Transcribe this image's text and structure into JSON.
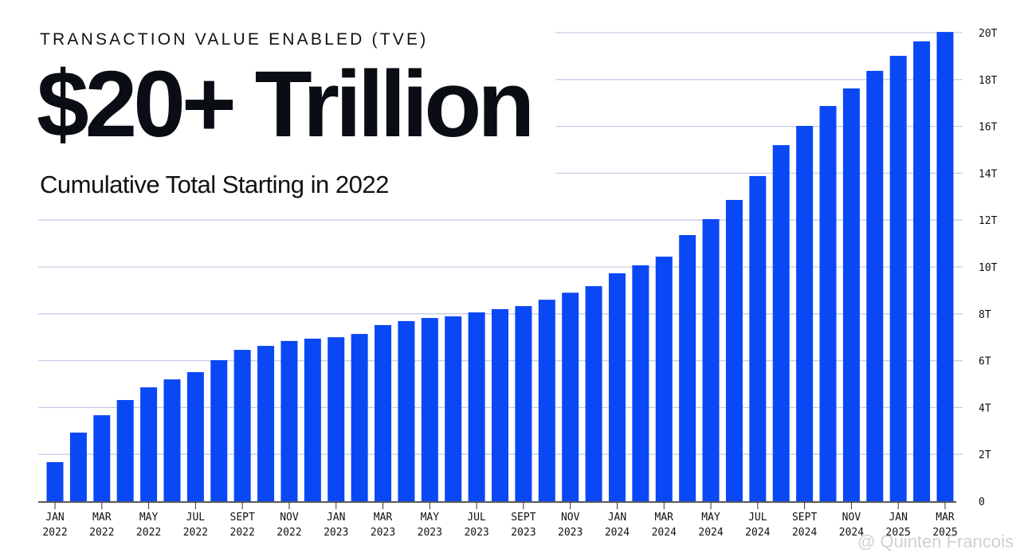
{
  "header": {
    "kicker": "TRANSACTION VALUE ENABLED (TVE)",
    "headline": "$20+ Trillion",
    "subtitle": "Cumulative Total Starting in 2022"
  },
  "watermark": "@ Quinten Francois",
  "chart_data": {
    "type": "bar",
    "title": "$20+ Trillion",
    "subtitle": "Cumulative Total Starting in 2022",
    "xlabel": "",
    "ylabel": "",
    "ylim": [
      0,
      20
    ],
    "y_unit": "T (trillion USD)",
    "y_ticks": [
      "0",
      "2T",
      "4T",
      "6T",
      "8T",
      "10T",
      "12T",
      "14T",
      "16T",
      "18T",
      "20T"
    ],
    "y_axis_side": "right",
    "grid": true,
    "bar_color": "#0a47f5",
    "x_tick_labels": [
      [
        "JAN",
        "2022"
      ],
      [
        "MAR",
        "2022"
      ],
      [
        "MAY",
        "2022"
      ],
      [
        "JUL",
        "2022"
      ],
      [
        "SEPT",
        "2022"
      ],
      [
        "NOV",
        "2022"
      ],
      [
        "JAN",
        "2023"
      ],
      [
        "MAR",
        "2023"
      ],
      [
        "MAY",
        "2023"
      ],
      [
        "JUL",
        "2023"
      ],
      [
        "SEPT",
        "2023"
      ],
      [
        "NOV",
        "2023"
      ],
      [
        "JAN",
        "2024"
      ],
      [
        "MAR",
        "2024"
      ],
      [
        "MAY",
        "2024"
      ],
      [
        "JUL",
        "2024"
      ],
      [
        "SEPT",
        "2024"
      ],
      [
        "NOV",
        "2024"
      ],
      [
        "JAN",
        "2025"
      ],
      [
        "MAR",
        "2025"
      ]
    ],
    "categories": [
      "Jan 2022",
      "Feb 2022",
      "Mar 2022",
      "Apr 2022",
      "May 2022",
      "Jun 2022",
      "Jul 2022",
      "Aug 2022",
      "Sep 2022",
      "Oct 2022",
      "Nov 2022",
      "Dec 2022",
      "Jan 2023",
      "Feb 2023",
      "Mar 2023",
      "Apr 2023",
      "May 2023",
      "Jun 2023",
      "Jul 2023",
      "Aug 2023",
      "Sep 2023",
      "Oct 2023",
      "Nov 2023",
      "Dec 2023",
      "Jan 2024",
      "Feb 2024",
      "Mar 2024",
      "Apr 2024",
      "May 2024",
      "Jun 2024",
      "Jul 2024",
      "Aug 2024",
      "Sep 2024",
      "Oct 2024",
      "Nov 2024",
      "Dec 2024",
      "Jan 2025",
      "Feb 2025",
      "Mar 2025"
    ],
    "values": [
      1.67,
      2.93,
      3.67,
      4.32,
      4.86,
      5.2,
      5.51,
      6.02,
      6.46,
      6.63,
      6.84,
      6.94,
      7.0,
      7.14,
      7.52,
      7.69,
      7.82,
      7.89,
      8.06,
      8.2,
      8.33,
      8.6,
      8.9,
      9.18,
      9.73,
      10.07,
      10.44,
      11.36,
      12.04,
      12.86,
      13.88,
      15.2,
      16.02,
      16.87,
      17.62,
      18.37,
      19.01,
      19.63,
      20.03
    ]
  }
}
